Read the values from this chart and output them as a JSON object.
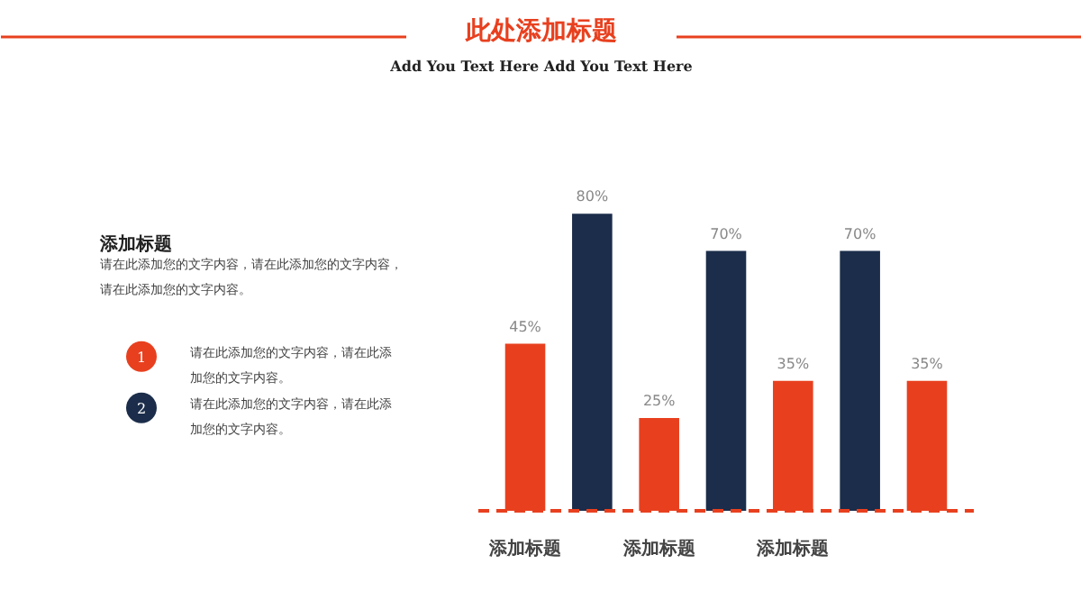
{
  "chart_data": {
    "type": "bar",
    "title": "此处添加标题",
    "subtitle": "Add You Text Here Add You Text Here",
    "categories": [
      "添加标题",
      null,
      "添加标题",
      null,
      "添加标题",
      null,
      null
    ],
    "values": [
      45,
      80,
      25,
      70,
      35,
      70,
      35
    ],
    "colors": [
      "#e8401f",
      "#1b2d4a",
      "#e8401f",
      "#1b2d4a",
      "#e8401f",
      "#1b2d4a",
      "#e8401f"
    ],
    "value_labels": [
      "45%",
      "80%",
      "25%",
      "70%",
      "35%",
      "70%",
      "35%"
    ],
    "grid": false,
    "annotations": [
      "添加标题",
      "请在此添加您的文字内容，请在此添加您的文字内容，请在此添加您的文字内容。",
      "1",
      "请在此添加您的文字内容，请在此添加您的文字内容。",
      "2",
      "请在此添加您的文字内容，请在此添加您的文字内容。"
    ]
  }
}
